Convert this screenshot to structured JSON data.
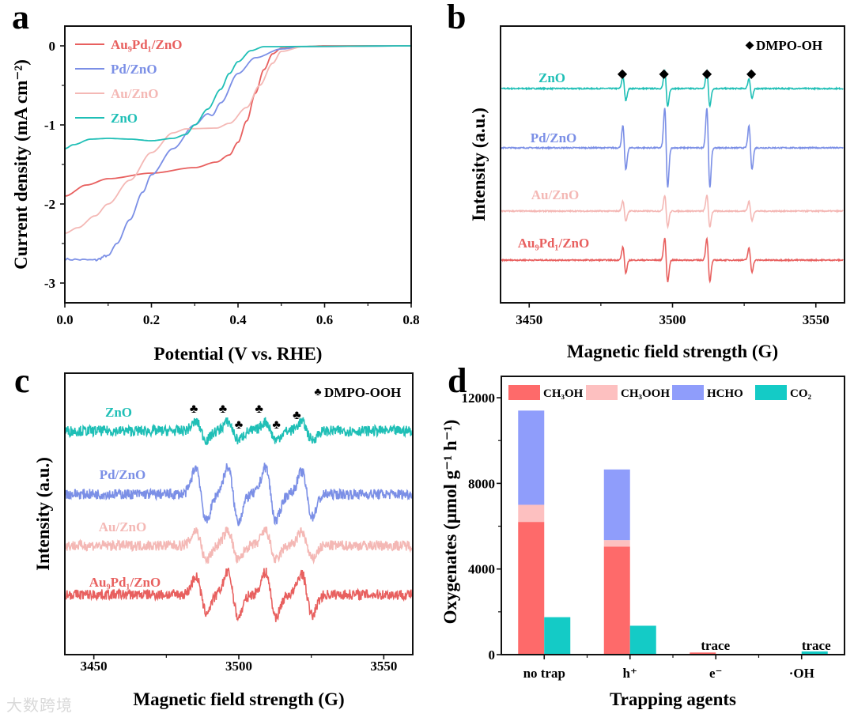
{
  "watermark": "大数跨境",
  "chart_data": [
    {
      "panel": "a",
      "type": "line",
      "xlabel": "Potential (V vs. RHE)",
      "ylabel": "Current density (mA cm⁻²)",
      "xlim": [
        0,
        0.8
      ],
      "ylim": [
        -3.25,
        0.25
      ],
      "xticks": [
        "0.0",
        "0.2",
        "0.4",
        "0.6",
        "0.8"
      ],
      "xtick_values": [
        0,
        0.2,
        0.4,
        0.6,
        0.8
      ],
      "yticks": [
        "0",
        "-1",
        "-2",
        "-3"
      ],
      "ytick_values": [
        0,
        -1,
        -2,
        -3
      ],
      "legend_position": "top-left",
      "series": [
        {
          "name": "Au₉Pd₁/ZnO",
          "color": "#e8605f",
          "x": [
            0,
            0.05,
            0.1,
            0.2,
            0.3,
            0.35,
            0.38,
            0.4,
            0.42,
            0.44,
            0.46,
            0.48,
            0.5,
            0.55,
            0.6,
            0.8
          ],
          "y": [
            -1.9,
            -1.76,
            -1.68,
            -1.61,
            -1.54,
            -1.47,
            -1.38,
            -1.22,
            -0.95,
            -0.6,
            -0.3,
            -0.1,
            -0.03,
            -0.01,
            0,
            0
          ]
        },
        {
          "name": "Pd/ZnO",
          "color": "#7b8fe6",
          "x": [
            0,
            0.07,
            0.1,
            0.12,
            0.15,
            0.18,
            0.2,
            0.25,
            0.3,
            0.33,
            0.34,
            0.36,
            0.4,
            0.44,
            0.5,
            0.55,
            0.8
          ],
          "y": [
            -2.7,
            -2.71,
            -2.65,
            -2.5,
            -2.2,
            -1.85,
            -1.63,
            -1.3,
            -1.0,
            -0.86,
            -0.88,
            -0.72,
            -0.35,
            -0.15,
            -0.04,
            -0.01,
            0
          ]
        },
        {
          "name": "Au/ZnO",
          "color": "#f4b8b5",
          "x": [
            0,
            0.03,
            0.07,
            0.1,
            0.15,
            0.2,
            0.25,
            0.28,
            0.35,
            0.38,
            0.42,
            0.45,
            0.48,
            0.5,
            0.55,
            0.8
          ],
          "y": [
            -2.37,
            -2.3,
            -2.15,
            -2.0,
            -1.7,
            -1.35,
            -1.1,
            -1.05,
            -1.04,
            -0.98,
            -0.78,
            -0.5,
            -0.22,
            -0.07,
            -0.01,
            0
          ]
        },
        {
          "name": "ZnO",
          "color": "#1fbfb6",
          "x": [
            0,
            0.02,
            0.06,
            0.1,
            0.15,
            0.2,
            0.25,
            0.28,
            0.3,
            0.33,
            0.36,
            0.38,
            0.4,
            0.43,
            0.46,
            0.8
          ],
          "y": [
            -1.3,
            -1.25,
            -1.18,
            -1.17,
            -1.18,
            -1.2,
            -1.17,
            -1.12,
            -1.0,
            -0.8,
            -0.55,
            -0.35,
            -0.2,
            -0.06,
            -0.01,
            0
          ]
        }
      ]
    },
    {
      "panel": "b",
      "type": "line",
      "xlabel": "Magnetic field strength (G)",
      "ylabel": "Intensity (a.u.)",
      "xlim": [
        3440,
        3560
      ],
      "xticks": [
        "3450",
        "3500",
        "3550"
      ],
      "xtick_values": [
        3450,
        3500,
        3550
      ],
      "annotation": "DMPO-OH",
      "marker_symbol": "◆",
      "marker_positions": [
        3482.5,
        3497,
        3512,
        3527.5
      ],
      "peak_centers": [
        3483.2,
        3497.8,
        3512.5,
        3527.2
      ],
      "series": [
        {
          "name": "ZnO",
          "color": "#1fbfb6",
          "amplitudes": [
            0.3,
            0.45,
            0.45,
            0.25
          ]
        },
        {
          "name": "Pd/ZnO",
          "color": "#7b8fe6",
          "amplitudes": [
            0.55,
            1.0,
            1.0,
            0.55
          ]
        },
        {
          "name": "Au/ZnO",
          "color": "#f4b8b5",
          "amplitudes": [
            0.25,
            0.4,
            0.4,
            0.25
          ]
        },
        {
          "name": "Au₉Pd₁/ZnO",
          "color": "#e8605f",
          "amplitudes": [
            0.33,
            0.55,
            0.55,
            0.3
          ]
        }
      ]
    },
    {
      "panel": "c",
      "type": "line",
      "xlabel": "Magnetic field strength (G)",
      "ylabel": "Intensity (a.u.)",
      "xlim": [
        3440,
        3560
      ],
      "xticks": [
        "3450",
        "3500",
        "3550"
      ],
      "xtick_values": [
        3450,
        3500,
        3550
      ],
      "annotation": "DMPO-OOH",
      "marker_symbol": "♣",
      "marker_positions": [
        3484.5,
        3494.5,
        3500,
        3507,
        3513,
        3520
      ],
      "marker_levels": [
        "high",
        "high",
        "low",
        "high",
        "low",
        "mid"
      ],
      "peak_centers": [
        3487,
        3498,
        3511,
        3523.5
      ],
      "series": [
        {
          "name": "ZnO",
          "color": "#1fbfb6",
          "amplitudes": [
            0.3,
            0.3,
            0.3,
            0.3
          ]
        },
        {
          "name": "Pd/ZnO",
          "color": "#7b8fe6",
          "amplitudes": [
            0.9,
            0.9,
            0.9,
            0.75
          ]
        },
        {
          "name": "Au/ZnO",
          "color": "#f4b8b5",
          "amplitudes": [
            0.5,
            0.5,
            0.5,
            0.45
          ]
        },
        {
          "name": "Au₉Pd₁/ZnO",
          "color": "#e8605f",
          "amplitudes": [
            0.6,
            0.75,
            0.75,
            0.7
          ]
        }
      ]
    },
    {
      "panel": "d",
      "type": "bar",
      "xlabel": "Trapping agents",
      "ylabel": "Oxygenates (μmol g⁻¹ h⁻¹)",
      "ylim": [
        0,
        13000
      ],
      "yticks": [
        "0",
        "4000",
        "8000",
        "12000"
      ],
      "ytick_values": [
        0,
        4000,
        8000,
        12000
      ],
      "categories": [
        "no trap",
        "h⁺",
        "e⁻",
        "·OH"
      ],
      "legend_position": "top",
      "stacked_series": [
        {
          "name": "CH₃OH",
          "color": "#fe6a6a",
          "values": [
            6200,
            5050,
            100,
            0
          ]
        },
        {
          "name": "CH₃OOH",
          "color": "#fdc0c0",
          "values": [
            800,
            300,
            0,
            0
          ]
        },
        {
          "name": "HCHO",
          "color": "#8f9dfb",
          "values": [
            4400,
            3300,
            0,
            0
          ]
        }
      ],
      "side_series": {
        "name": "CO₂",
        "color": "#14cbc6",
        "values": [
          1750,
          1350,
          0,
          150
        ]
      },
      "annotations": [
        {
          "category": "e⁻",
          "text": "trace"
        },
        {
          "category": "·OH",
          "text": "trace"
        }
      ]
    }
  ],
  "panel_letters": [
    "a",
    "b",
    "c",
    "d"
  ]
}
